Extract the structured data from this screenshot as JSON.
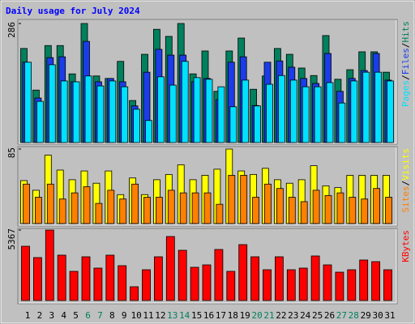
{
  "chart_data": [
    {
      "type": "bar",
      "title": "Daily usage for July 2024",
      "categories": [
        "1",
        "2",
        "3",
        "4",
        "5",
        "6",
        "7",
        "8",
        "9",
        "10",
        "11",
        "12",
        "13",
        "14",
        "15",
        "16",
        "17",
        "18",
        "19",
        "20",
        "21",
        "22",
        "23",
        "24",
        "25",
        "26",
        "27",
        "28",
        "29",
        "30",
        "31"
      ],
      "category_colors": [
        "#000000",
        "#000000",
        "#000000",
        "#000000",
        "#000000",
        "#00805c",
        "#00805c",
        "#000000",
        "#000000",
        "#000000",
        "#000000",
        "#000000",
        "#00805c",
        "#00805c",
        "#000000",
        "#000000",
        "#000000",
        "#000000",
        "#000000",
        "#00805c",
        "#00805c",
        "#000000",
        "#000000",
        "#000000",
        "#000000",
        "#000000",
        "#00805c",
        "#00805c",
        "#000000",
        "#000000",
        "#000000"
      ],
      "legend_separator": "/",
      "ylim": [
        0,
        286
      ],
      "yticks": [
        286
      ],
      "series": [
        {
          "name": "Hits",
          "color": "#00805c",
          "values": [
            226,
            126,
            233,
            233,
            165,
            286,
            160,
            154,
            195,
            101,
            212,
            272,
            255,
            286,
            165,
            220,
            123,
            220,
            251,
            128,
            160,
            226,
            212,
            179,
            161,
            257,
            152,
            175,
            218,
            218,
            169
          ]
        },
        {
          "name": "Files",
          "color": "#1c3ce8",
          "values": [
            193,
            107,
            204,
            206,
            146,
            243,
            146,
            154,
            146,
            88,
            169,
            224,
            210,
            210,
            146,
            154,
            103,
            193,
            206,
            89,
            193,
            196,
            181,
            154,
            142,
            214,
            123,
            154,
            173,
            214,
            150
          ]
        },
        {
          "name": "Pages",
          "color": "#00e0ff",
          "values": [
            193,
            99,
            187,
            148,
            146,
            160,
            136,
            148,
            134,
            80,
            53,
            158,
            138,
            195,
            156,
            152,
            134,
            86,
            150,
            88,
            140,
            161,
            150,
            134,
            134,
            144,
            95,
            148,
            169,
            169,
            148
          ]
        }
      ]
    },
    {
      "type": "bar",
      "legend_separator": "/",
      "ylim": [
        0,
        85
      ],
      "yticks": [
        85
      ],
      "series": [
        {
          "name": "Visits",
          "color": "#ffff00",
          "values": [
            49,
            38,
            78,
            61,
            50,
            60,
            46,
            60,
            33,
            52,
            33,
            50,
            56,
            67,
            50,
            55,
            62,
            85,
            60,
            56,
            63,
            50,
            46,
            50,
            66,
            43,
            41,
            55,
            55,
            55,
            55
          ]
        },
        {
          "name": "Sites",
          "color": "#ff8000",
          "values": [
            45,
            30,
            45,
            28,
            35,
            42,
            23,
            38,
            28,
            45,
            30,
            30,
            38,
            35,
            35,
            35,
            22,
            55,
            55,
            30,
            45,
            40,
            30,
            25,
            38,
            32,
            35,
            30,
            28,
            40,
            30
          ]
        }
      ]
    },
    {
      "type": "bar",
      "ylim": [
        0,
        5367
      ],
      "yticks": [
        5367
      ],
      "series": [
        {
          "name": "KBytes",
          "color": "#ff0000",
          "values": [
            4133,
            3270,
            5367,
            3455,
            2221,
            3331,
            2468,
            3455,
            2653,
            1049,
            2344,
            3331,
            4874,
            3825,
            2530,
            2714,
            3887,
            2221,
            4257,
            3331,
            2344,
            3331,
            2344,
            2468,
            3393,
            2714,
            2159,
            2344,
            3085,
            2961,
            2344
          ]
        }
      ]
    }
  ]
}
